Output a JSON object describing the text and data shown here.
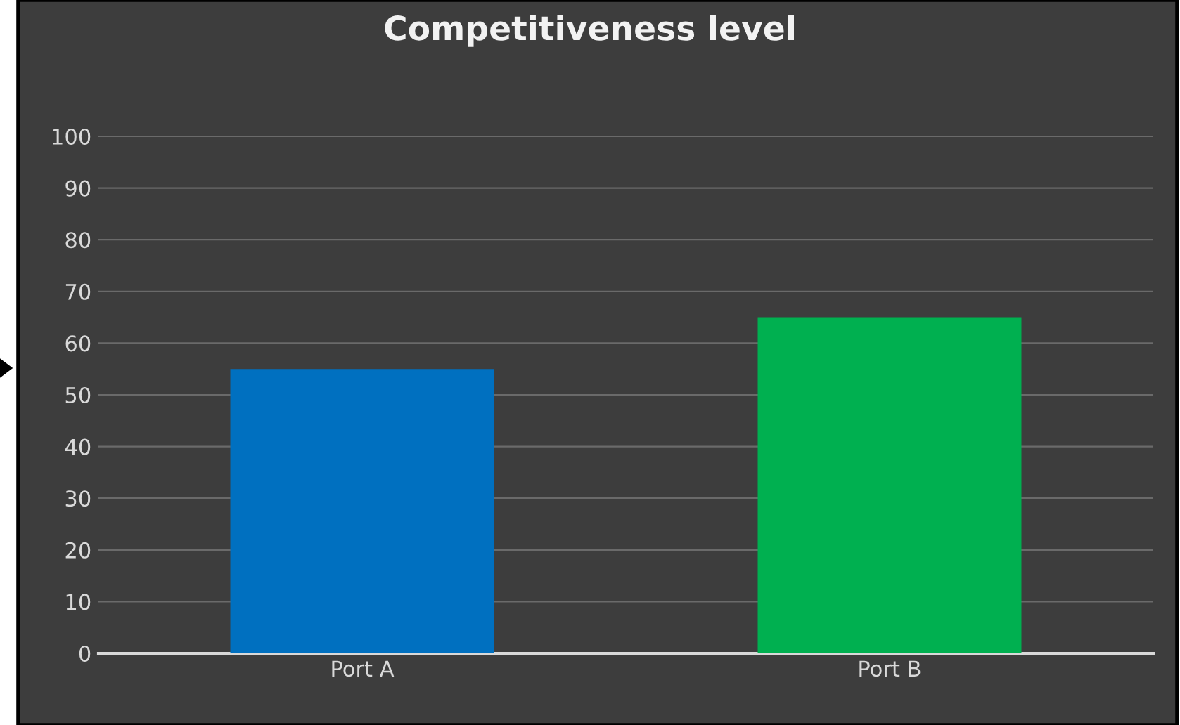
{
  "chart_data": {
    "type": "bar",
    "title": "Competitiveness level",
    "categories": [
      "Port A",
      "Port B"
    ],
    "series": [
      {
        "colors": [
          "#0070c0",
          "#00b050"
        ],
        "values": [
          55,
          65
        ]
      }
    ],
    "ylim": [
      0,
      100
    ],
    "yticks": [
      0,
      10,
      20,
      30,
      40,
      50,
      60,
      70,
      80,
      90,
      100
    ],
    "grid": "y",
    "legend": false
  }
}
